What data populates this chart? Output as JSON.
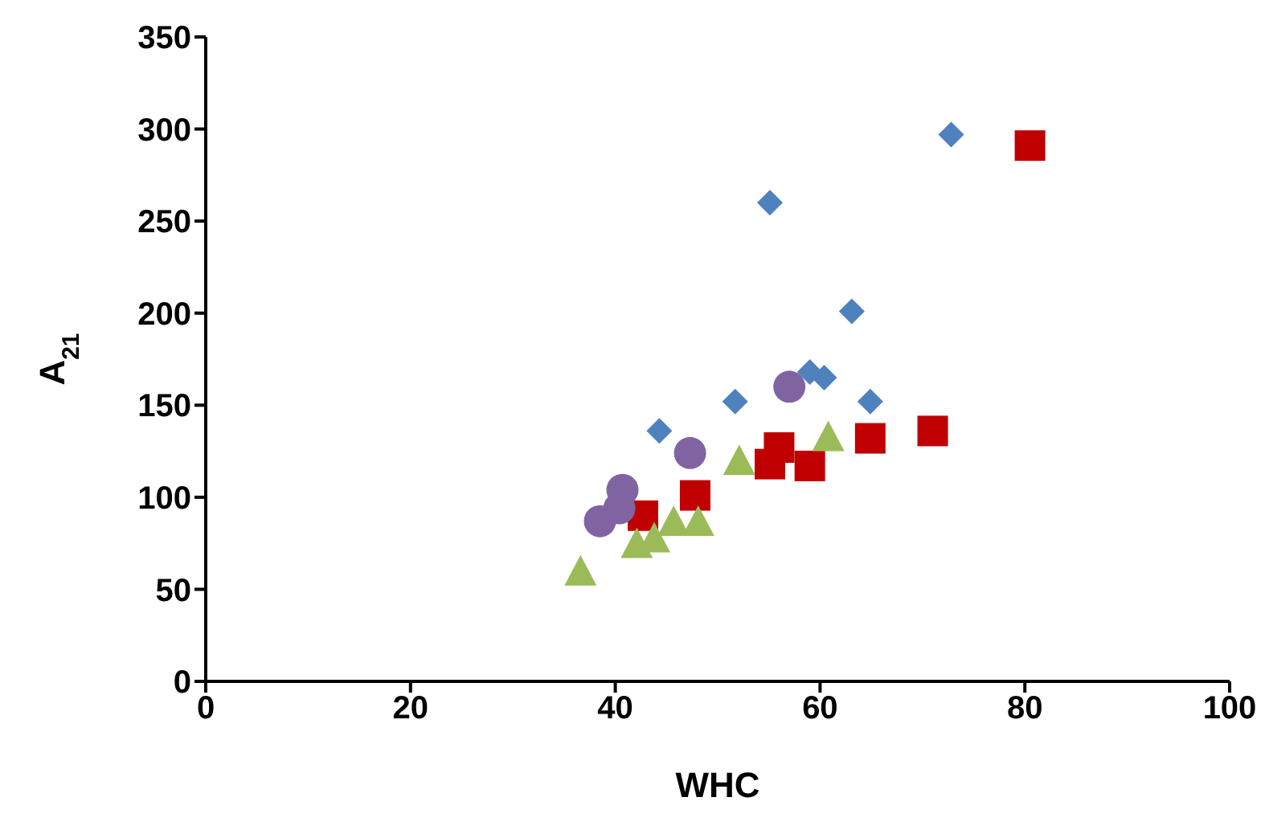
{
  "chart_data": {
    "type": "scatter",
    "xlabel": "WHC",
    "ylabel": "A$_{21}$",
    "xlim": [
      0,
      100
    ],
    "xticks": [
      0,
      20,
      40,
      60,
      80,
      100
    ],
    "ylim": [
      0,
      350
    ],
    "yticks": [
      0,
      50,
      100,
      150,
      200,
      250,
      300,
      350
    ],
    "grid": false,
    "legend": false,
    "series": [
      {
        "color": "#4f81bd",
        "marker": "diamond",
        "x": [
          44.3,
          51.7,
          55.1,
          59.0,
          60.4,
          63.1,
          64.9,
          72.8
        ],
        "values": [
          136,
          152,
          260,
          168,
          165,
          201,
          152,
          297
        ]
      },
      {
        "color": "#c00000",
        "marker": "square",
        "x": [
          42.7,
          47.8,
          55.1,
          56.0,
          59.0,
          64.9,
          71.0,
          80.5
        ],
        "values": [
          90,
          101,
          118,
          127,
          117,
          132,
          136,
          291
        ]
      },
      {
        "color": "#8064a2",
        "marker": "circle",
        "x": [
          38.5,
          40.4,
          40.7,
          47.3,
          57.0
        ],
        "values": [
          87,
          94,
          104,
          124,
          160
        ]
      },
      {
        "color": "#9bbb59",
        "marker": "triangle",
        "x": [
          36.6,
          42.1,
          43.8,
          45.7,
          48.1,
          52.1,
          60.8
        ],
        "values": [
          59,
          74,
          77,
          86,
          86,
          119,
          132
        ]
      }
    ]
  }
}
